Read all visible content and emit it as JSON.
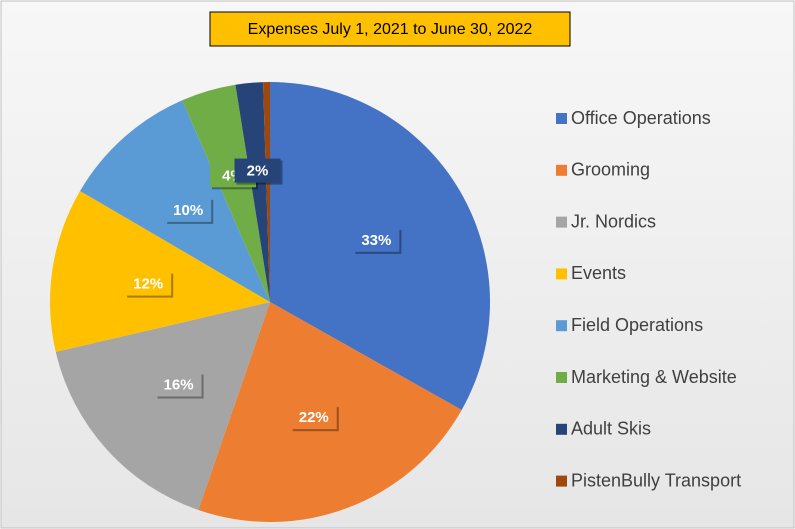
{
  "chart_data": {
    "type": "pie",
    "title": "Expenses July 1, 2021 to June 30, 2022",
    "categories": [
      "Office Operations",
      "Grooming",
      "Jr. Nordics",
      "Events",
      "Field Operations",
      "Marketing & Website",
      "Adult Skis",
      "PistenBully Transport"
    ],
    "values": [
      33,
      22,
      16,
      12,
      10,
      4,
      2,
      0.5
    ],
    "value_labels": [
      "33%",
      "22%",
      "16%",
      "12%",
      "10%",
      "4%",
      "2%",
      null
    ],
    "colors": [
      "#4472c4",
      "#ed7d31",
      "#a5a5a5",
      "#ffc000",
      "#5b9bd5",
      "#70ad47",
      "#264478",
      "#9e480e"
    ],
    "legend": "right"
  }
}
